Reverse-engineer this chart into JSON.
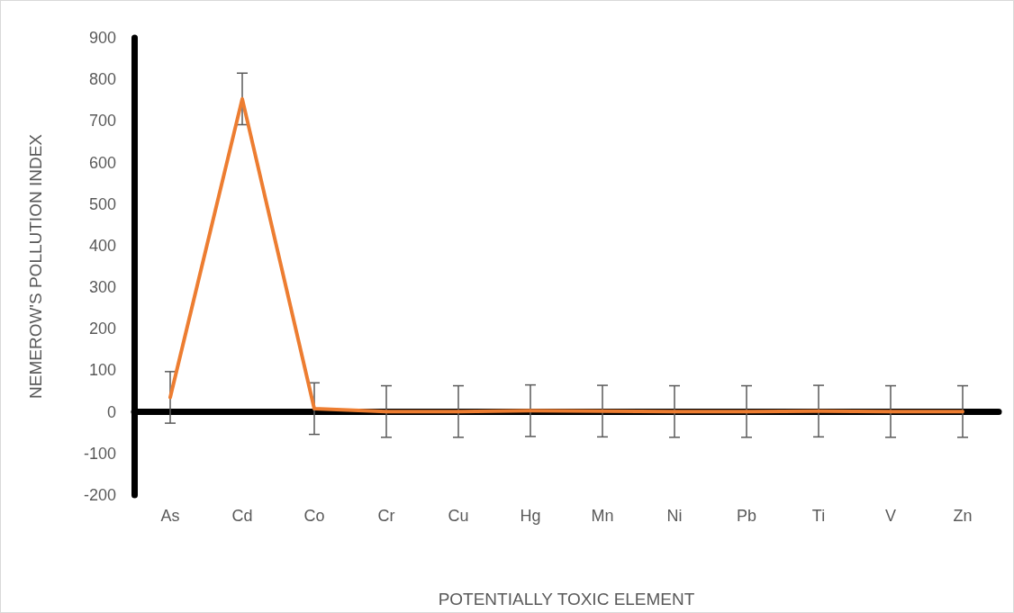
{
  "chart_data": {
    "type": "line",
    "xlabel": "POTENTIALLY TOXIC ELEMENT",
    "ylabel": "NEMEROW'S POLLUTION INDEX",
    "categories": [
      "As",
      "Cd",
      "Co",
      "Cr",
      "Cu",
      "Hg",
      "Mn",
      "Ni",
      "Pb",
      "Ti",
      "V",
      "Zn"
    ],
    "series": [
      {
        "color": "#ed7d31",
        "values": [
          35,
          753,
          8,
          1,
          1,
          3,
          2,
          1,
          1,
          2,
          1,
          1
        ],
        "errors": [
          62,
          62,
          62,
          62,
          62,
          62,
          62,
          62,
          62,
          62,
          62,
          62
        ]
      }
    ],
    "ylim": [
      -200,
      900
    ],
    "yticks": [
      -200,
      -100,
      0,
      100,
      200,
      300,
      400,
      500,
      600,
      700,
      800,
      900
    ],
    "marker": "none",
    "line_style": "solid"
  }
}
